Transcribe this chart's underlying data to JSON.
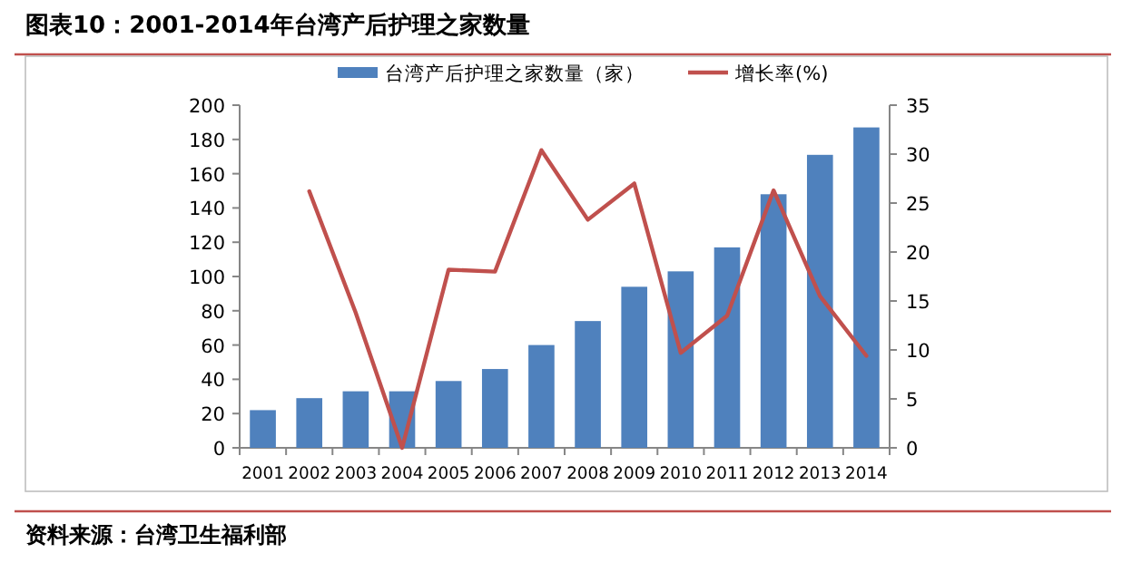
{
  "chart_data": {
    "type": "bar",
    "title": "图表10：2001-2014年台湾产后护理之家数量",
    "categories": [
      "2001",
      "2002",
      "2003",
      "2004",
      "2005",
      "2006",
      "2007",
      "2008",
      "2009",
      "2010",
      "2011",
      "2012",
      "2013",
      "2014"
    ],
    "series": [
      {
        "name": "台湾产后护理之家数量（家）",
        "color": "#4f81bd",
        "values": [
          22,
          29,
          33,
          33,
          39,
          46,
          60,
          74,
          94,
          103,
          117,
          148,
          171,
          187
        ]
      },
      {
        "name": "增长率(%)",
        "type": "line",
        "axis": "y2",
        "color": "#c0504d",
        "values": [
          null,
          26.2,
          13.8,
          0,
          18.2,
          18.0,
          30.4,
          23.3,
          27.0,
          9.7,
          13.5,
          26.3,
          15.5,
          9.4
        ]
      }
    ],
    "ylim": [
      0,
      200
    ],
    "yticks": [
      0,
      20,
      40,
      60,
      80,
      100,
      120,
      140,
      160,
      180,
      200
    ],
    "y2lim": [
      0,
      35
    ],
    "y2ticks": [
      0,
      5,
      10,
      15,
      20,
      25,
      30,
      35
    ],
    "legend": "top",
    "grid": false,
    "annotations": [
      "资料来源：台湾卫生福利部"
    ]
  }
}
